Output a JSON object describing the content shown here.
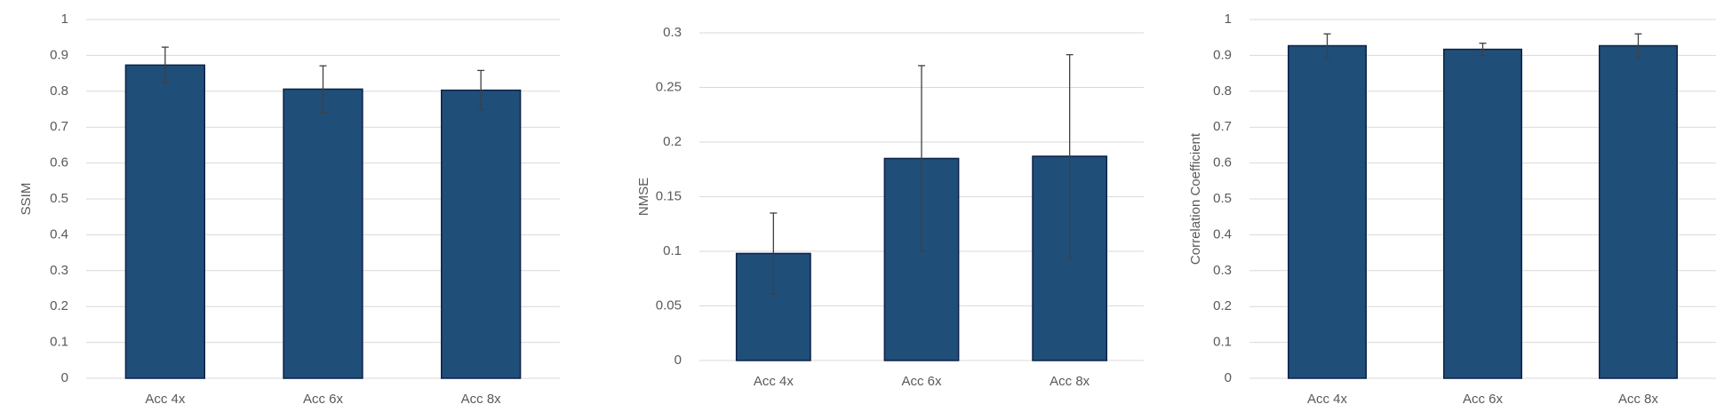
{
  "chart_data": [
    {
      "type": "bar",
      "y_label": "SSIM",
      "categories": [
        "Acc 4x",
        "Acc 6x",
        "Acc 8x"
      ],
      "values": [
        0.873,
        0.806,
        0.803
      ],
      "errors": [
        0.05,
        0.065,
        0.055
      ],
      "color": "#1f4e79",
      "ylim": [
        0,
        1
      ],
      "yticks": [
        0,
        0.1,
        0.2,
        0.3,
        0.4,
        0.5,
        0.6,
        0.7,
        0.8,
        0.9,
        1
      ],
      "grid": true
    },
    {
      "type": "bar",
      "y_label": "NMSE",
      "categories": [
        "Acc 4x",
        "Acc 6x",
        "Acc 8x"
      ],
      "values": [
        0.098,
        0.185,
        0.187
      ],
      "errors": [
        0.037,
        0.085,
        0.093
      ],
      "color": "#1f4e79",
      "ylim": [
        0,
        0.3
      ],
      "yticks": [
        0,
        0.05,
        0.1,
        0.15,
        0.2,
        0.25,
        0.3
      ],
      "grid": true
    },
    {
      "type": "bar",
      "y_label": "Correlation Coefficient",
      "categories": [
        "Acc 4x",
        "Acc 6x",
        "Acc 8x"
      ],
      "values": [
        0.927,
        0.917,
        0.927
      ],
      "errors": [
        0.033,
        0.017,
        0.033
      ],
      "color": "#1f4e79",
      "ylim": [
        0,
        1
      ],
      "yticks": [
        0,
        0.1,
        0.2,
        0.3,
        0.4,
        0.5,
        0.6,
        0.7,
        0.8,
        0.9,
        1
      ],
      "grid": true
    }
  ]
}
